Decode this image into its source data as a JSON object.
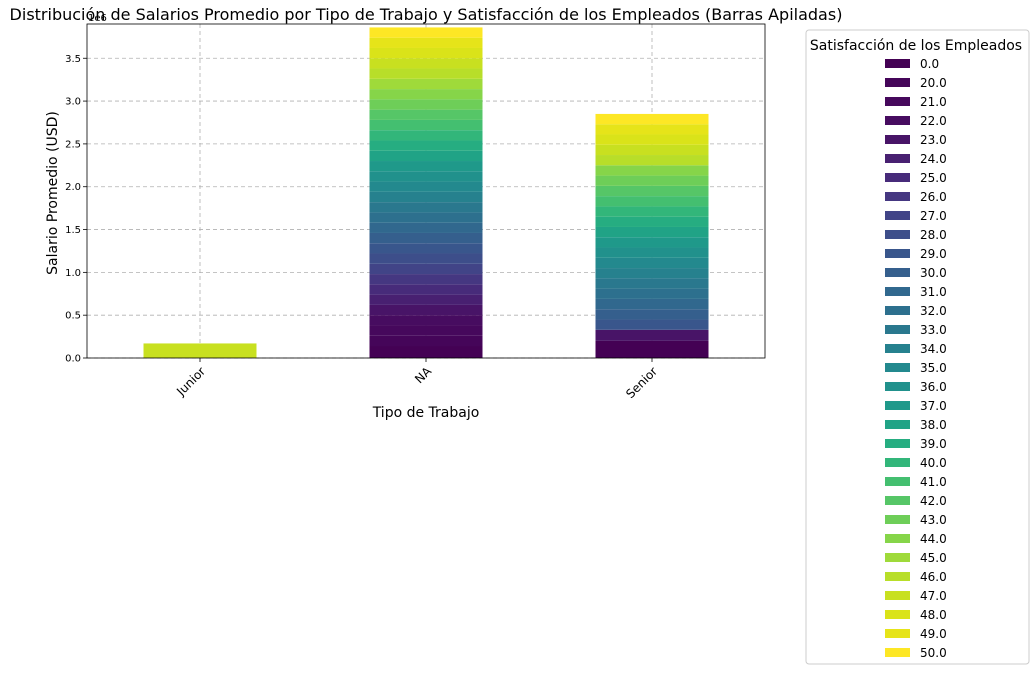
{
  "chart_data": {
    "type": "bar",
    "stacked": true,
    "title": "Distribución de Salarios Promedio por Tipo de Trabajo y Satisfacción de los Empleados (Barras Apiladas)",
    "xlabel": "Tipo de Trabajo",
    "ylabel": "Salario Promedio (USD)",
    "y_offset_text": "1e6",
    "categories": [
      "Junior",
      "NA",
      "Senior"
    ],
    "ylim": [
      0,
      3.9
    ],
    "yticks": [
      "0.0",
      "0.5",
      "1.0",
      "1.5",
      "2.0",
      "2.5",
      "3.0",
      "3.5"
    ],
    "grid": true,
    "legend": {
      "title": "Satisfacción de los Empleados",
      "placement": "outside-right"
    },
    "colors": [
      "#440154",
      "#450559",
      "#46085c",
      "#470c60",
      "#481467",
      "#482071",
      "#472b7a",
      "#453781",
      "#414487",
      "#3d4e8a",
      "#39568c",
      "#355f8d",
      "#31688e",
      "#2d708e",
      "#2a788e",
      "#26818e",
      "#23898e",
      "#21918c",
      "#1f998a",
      "#20a386",
      "#26ad81",
      "#32b67a",
      "#44bf70",
      "#56c667",
      "#6ece58",
      "#86d549",
      "#9fda3a",
      "#b8de29",
      "#c8e020",
      "#dae319",
      "#e6e419",
      "#fde725"
    ],
    "series": [
      {
        "name": "0.0",
        "values": [
          0,
          0.14,
          0.2
        ]
      },
      {
        "name": "20.0",
        "values": [
          0,
          0.12,
          0.0
        ]
      },
      {
        "name": "21.0",
        "values": [
          0,
          0.12,
          0.0
        ]
      },
      {
        "name": "22.0",
        "values": [
          0,
          0.12,
          0.0
        ]
      },
      {
        "name": "23.0",
        "values": [
          0,
          0.12,
          0.13
        ]
      },
      {
        "name": "24.0",
        "values": [
          0,
          0.12,
          0.0
        ]
      },
      {
        "name": "25.0",
        "values": [
          0,
          0.12,
          0.0
        ]
      },
      {
        "name": "26.0",
        "values": [
          0,
          0.12,
          0.0
        ]
      },
      {
        "name": "27.0",
        "values": [
          0,
          0.12,
          0.0
        ]
      },
      {
        "name": "28.0",
        "values": [
          0,
          0.12,
          0.0
        ]
      },
      {
        "name": "29.0",
        "values": [
          0,
          0.12,
          0.12
        ]
      },
      {
        "name": "30.0",
        "values": [
          0,
          0.12,
          0.12
        ]
      },
      {
        "name": "31.0",
        "values": [
          0,
          0.12,
          0.12
        ]
      },
      {
        "name": "32.0",
        "values": [
          0,
          0.12,
          0.12
        ]
      },
      {
        "name": "33.0",
        "values": [
          0,
          0.12,
          0.12
        ]
      },
      {
        "name": "34.0",
        "values": [
          0,
          0.12,
          0.12
        ]
      },
      {
        "name": "35.0",
        "values": [
          0,
          0.12,
          0.12
        ]
      },
      {
        "name": "36.0",
        "values": [
          0,
          0.12,
          0.12
        ]
      },
      {
        "name": "37.0",
        "values": [
          0,
          0.12,
          0.12
        ]
      },
      {
        "name": "38.0",
        "values": [
          0,
          0.12,
          0.12
        ]
      },
      {
        "name": "39.0",
        "values": [
          0,
          0.12,
          0.12
        ]
      },
      {
        "name": "40.0",
        "values": [
          0,
          0.12,
          0.12
        ]
      },
      {
        "name": "41.0",
        "values": [
          0,
          0.12,
          0.12
        ]
      },
      {
        "name": "42.0",
        "values": [
          0,
          0.12,
          0.12
        ]
      },
      {
        "name": "43.0",
        "values": [
          0,
          0.12,
          0.12
        ]
      },
      {
        "name": "44.0",
        "values": [
          0,
          0.12,
          0.12
        ]
      },
      {
        "name": "45.0",
        "values": [
          0,
          0.12,
          0.0
        ]
      },
      {
        "name": "46.0",
        "values": [
          0,
          0.12,
          0.12
        ]
      },
      {
        "name": "47.0",
        "values": [
          0.17,
          0.12,
          0.12
        ]
      },
      {
        "name": "48.0",
        "values": [
          0,
          0.12,
          0.12
        ]
      },
      {
        "name": "49.0",
        "values": [
          0,
          0.12,
          0.12
        ]
      },
      {
        "name": "50.0",
        "values": [
          0,
          0.12,
          0.12
        ]
      }
    ]
  }
}
